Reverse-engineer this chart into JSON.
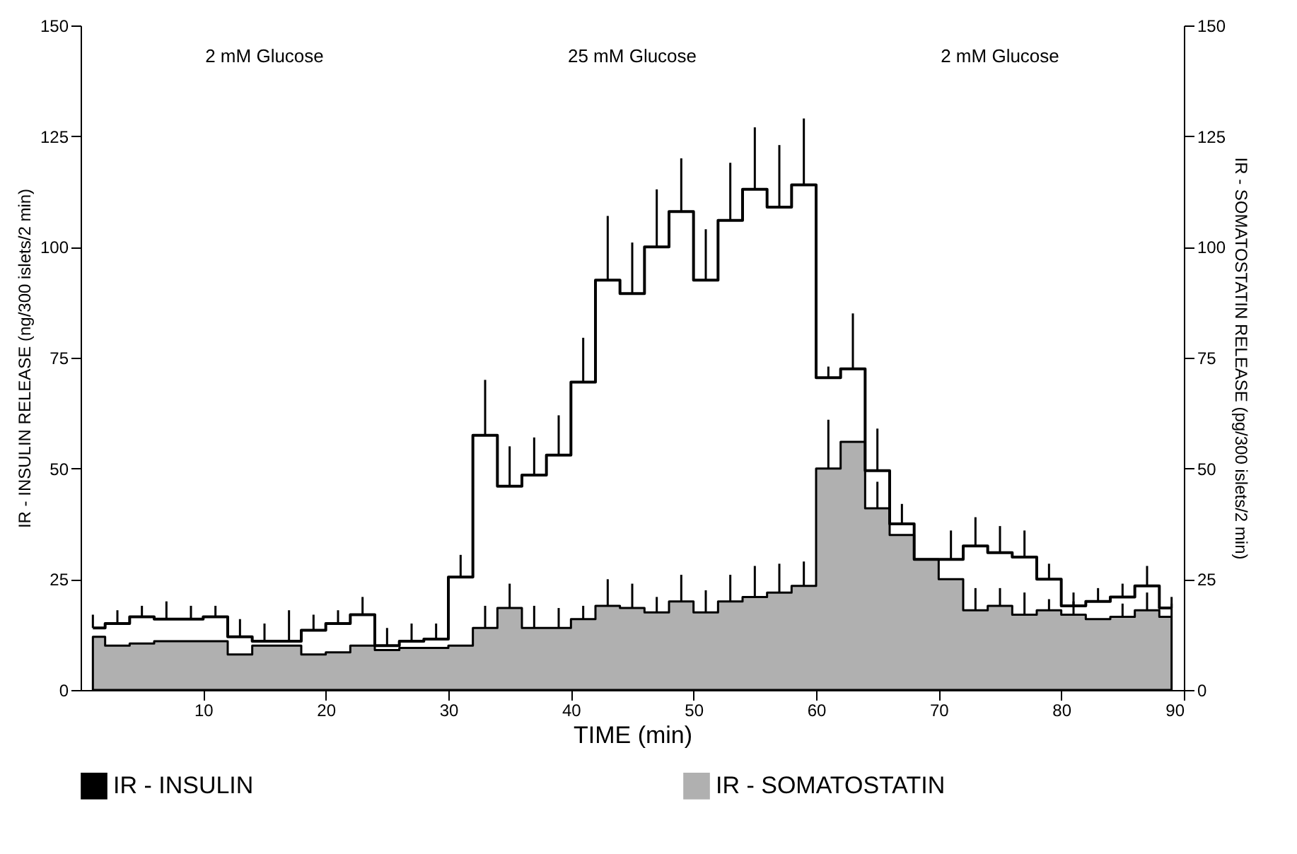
{
  "chart_data": {
    "type": "step",
    "xlabel": "TIME (min)",
    "ylabel": "IR - INSULIN RELEASE (ng/300 islets/2 min)",
    "y2label": "IR - SOMATOSTATIN RELEASE (pg/300 islets/2 min)",
    "x": [
      1,
      3,
      5,
      7,
      9,
      11,
      13,
      15,
      17,
      19,
      21,
      23,
      25,
      27,
      29,
      31,
      33,
      35,
      37,
      39,
      41,
      43,
      45,
      47,
      49,
      51,
      53,
      55,
      57,
      59,
      61,
      63,
      65,
      67,
      69,
      71,
      73,
      75,
      77,
      79,
      81,
      83,
      85,
      87,
      89
    ],
    "series": [
      {
        "name": "IR - INSULIN",
        "color": "#000000",
        "values": [
          14,
          15,
          16.5,
          16,
          16,
          16.5,
          12,
          11,
          11,
          13.5,
          15,
          17,
          10,
          11,
          11.5,
          25.5,
          57.5,
          46,
          48.5,
          53,
          69.5,
          92.5,
          89.5,
          100,
          108,
          92.5,
          106,
          113,
          109,
          114,
          70.5,
          72.5,
          49.5,
          37.5,
          29.5,
          29.5,
          32.5,
          31,
          30,
          25,
          19,
          20,
          21,
          23.5,
          18.5
        ],
        "errors": [
          [
            14,
            17
          ],
          [
            15,
            18
          ],
          [
            16.5,
            19
          ],
          [
            16,
            20
          ],
          [
            16,
            19
          ],
          [
            16.5,
            19
          ],
          [
            12,
            16
          ],
          [
            11,
            15
          ],
          [
            11,
            18
          ],
          [
            13.5,
            17
          ],
          [
            15,
            18
          ],
          [
            17,
            21
          ],
          [
            10,
            14
          ],
          [
            11,
            15
          ],
          [
            11.5,
            15
          ],
          [
            25.5,
            30.5
          ],
          [
            57.5,
            70
          ],
          [
            46,
            55
          ],
          [
            48.5,
            57
          ],
          [
            53,
            62
          ],
          [
            69.5,
            79.5
          ],
          [
            92.5,
            107
          ],
          [
            89.5,
            101
          ],
          [
            100,
            113
          ],
          [
            108,
            120
          ],
          [
            92.5,
            104
          ],
          [
            106,
            119
          ],
          [
            113,
            127
          ],
          [
            109,
            123
          ],
          [
            114,
            129
          ],
          [
            70.5,
            73
          ],
          [
            72.5,
            85
          ],
          [
            49.5,
            59
          ],
          [
            37.5,
            42
          ],
          null,
          [
            29.5,
            36
          ],
          [
            32.5,
            39
          ],
          [
            31,
            37
          ],
          [
            30,
            36
          ],
          [
            25,
            28.5
          ],
          [
            19,
            22
          ],
          [
            20,
            23
          ],
          [
            21,
            24
          ],
          [
            23.5,
            28
          ],
          [
            18.5,
            21
          ]
        ]
      },
      {
        "name": "IR - SOMATOSTATIN",
        "type": "area",
        "axis": "y2",
        "color": "#b0b0b0",
        "values": [
          12,
          10,
          10.5,
          11,
          11,
          11,
          8,
          10,
          10,
          8,
          8.5,
          10,
          9,
          9.5,
          9.5,
          10,
          14,
          18.5,
          14,
          14,
          16,
          19,
          18.5,
          17.5,
          20,
          17.5,
          20,
          21,
          22,
          23.5,
          50,
          56,
          41,
          35,
          29.5,
          25,
          18,
          19,
          17,
          18,
          17,
          16,
          16.5,
          18,
          16.5
        ],
        "errors": [
          null,
          null,
          null,
          null,
          null,
          null,
          null,
          null,
          null,
          null,
          null,
          null,
          null,
          null,
          null,
          null,
          [
            14,
            19
          ],
          [
            18.5,
            24
          ],
          [
            14,
            19
          ],
          [
            14,
            18.5
          ],
          [
            16,
            19
          ],
          [
            19,
            25
          ],
          [
            18.5,
            24
          ],
          [
            17.5,
            21
          ],
          [
            20,
            26
          ],
          [
            17.5,
            22.5
          ],
          [
            20,
            26
          ],
          [
            21,
            28
          ],
          [
            22,
            28.5
          ],
          [
            23.5,
            29
          ],
          [
            50,
            61
          ],
          null,
          [
            41,
            47
          ],
          null,
          null,
          null,
          [
            18,
            23
          ],
          [
            19,
            23
          ],
          [
            17,
            22
          ],
          [
            18,
            20.5
          ],
          [
            17,
            20
          ],
          null,
          [
            16.5,
            19.5
          ],
          [
            18,
            22
          ],
          [
            16.5,
            19.5
          ]
        ]
      }
    ],
    "xlim": [
      0,
      90
    ],
    "xticks": [
      10,
      20,
      30,
      40,
      50,
      60,
      70,
      80,
      90
    ],
    "ylim": [
      0,
      150
    ],
    "yticks": [
      0,
      25,
      50,
      75,
      100,
      125,
      150
    ],
    "y2lim": [
      0,
      150
    ],
    "y2ticks": [
      0,
      25,
      50,
      75,
      100,
      125,
      150
    ],
    "annotations": [
      "2 mM Glucose",
      "25 mM Glucose",
      "2 mM Glucose"
    ],
    "legend": "bottom",
    "grid": false
  }
}
